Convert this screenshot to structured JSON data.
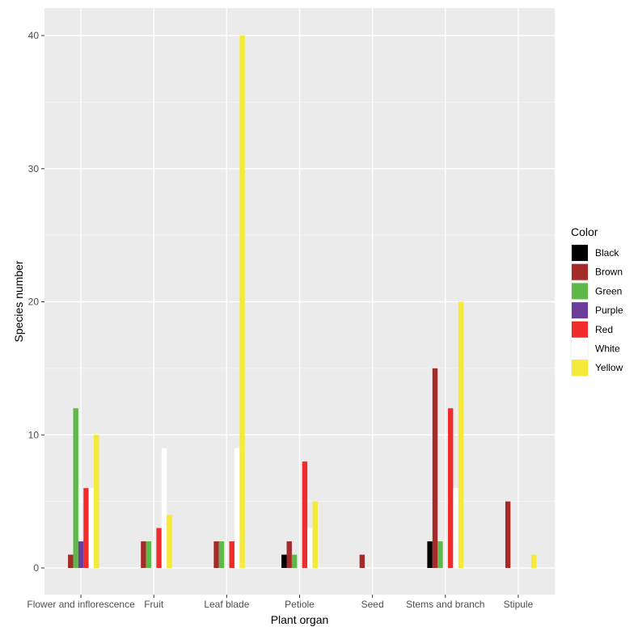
{
  "chart_data": {
    "type": "bar",
    "xlabel": "Plant organ",
    "ylabel": "Species number",
    "ylim": [
      0,
      42.5
    ],
    "yticks": [
      0,
      10,
      20,
      30,
      40
    ],
    "grid": true,
    "legend_title": "Color",
    "legend_position": "right",
    "categories": [
      "Flower and inflorescence",
      "Fruit",
      "Leaf blade",
      "Petiole",
      "Seed",
      "Stems and branch",
      "Stipule"
    ],
    "series": [
      {
        "name": "Black",
        "color": "#000000",
        "values": [
          0,
          0,
          0,
          1,
          0,
          2,
          0
        ]
      },
      {
        "name": "Brown",
        "color": "#a52a2a",
        "values": [
          1,
          2,
          2,
          2,
          1,
          15,
          5
        ]
      },
      {
        "name": "Green",
        "color": "#5fb84a",
        "values": [
          12,
          2,
          2,
          1,
          0,
          2,
          0
        ]
      },
      {
        "name": "Purple",
        "color": "#6a3d9a",
        "values": [
          2,
          0,
          0,
          0,
          0,
          0,
          0
        ]
      },
      {
        "name": "Red",
        "color": "#ef2b2b",
        "values": [
          6,
          3,
          2,
          8,
          0,
          12,
          0
        ]
      },
      {
        "name": "White",
        "color": "#ffffff",
        "values": [
          6,
          9,
          9,
          3,
          0,
          6,
          0
        ]
      },
      {
        "name": "Yellow",
        "color": "#f5e93a",
        "values": [
          10,
          4,
          40,
          5,
          0,
          20,
          1
        ]
      }
    ]
  }
}
